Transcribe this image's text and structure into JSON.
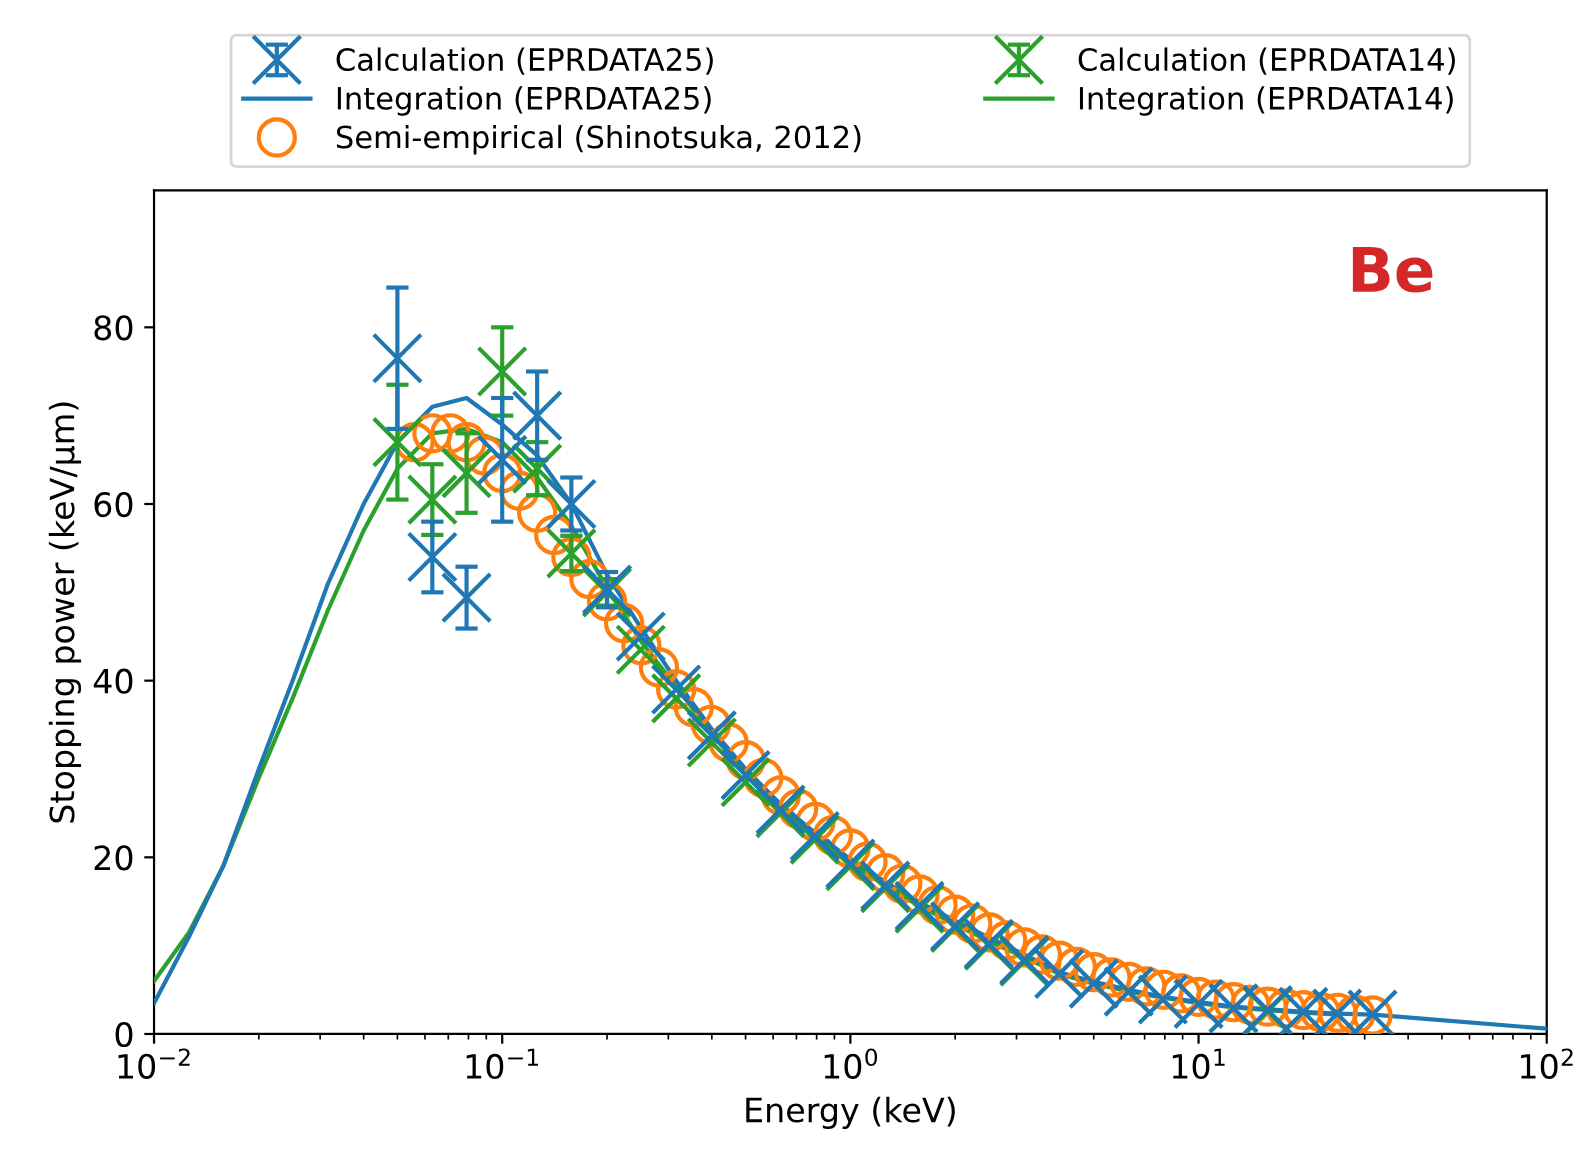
{
  "chart_data": {
    "type": "scatter",
    "xlabel": "Energy (keV)",
    "ylabel": "Stopping power (keV/μm)",
    "annotations": [
      "Be"
    ],
    "log": "x",
    "xlim": [
      0.01,
      100
    ],
    "xticks": [
      {
        "value": 0.01,
        "label": "10$^{−2}$"
      },
      {
        "value": 0.1,
        "label": "10$^{−1}$"
      },
      {
        "value": 1,
        "label": "10$^{0}$"
      },
      {
        "value": 10,
        "label": "10$^{1}$"
      },
      {
        "value": 100,
        "label": "10$^{2}$"
      }
    ],
    "ylim": [
      0,
      95.5
    ],
    "yticks": [
      0,
      20,
      40,
      60,
      80
    ],
    "grid": false,
    "legend": "top",
    "series": [
      {
        "name": "Calculation (EPRDATA25)",
        "marker": "cross",
        "color": "#1f77b4",
        "x": [
          0.05,
          0.063,
          0.079,
          0.1,
          0.126,
          0.158,
          0.2,
          0.25,
          0.316,
          0.4,
          0.5,
          0.63,
          0.79,
          1,
          1.26,
          1.58,
          2,
          2.5,
          3.16,
          3.98,
          5,
          6.3,
          7.9,
          10,
          12.6,
          15.8,
          20,
          25,
          31.6
        ],
        "values": [
          76.5,
          54,
          49.4,
          65,
          70,
          60,
          50.3,
          45,
          39,
          33.8,
          29.3,
          25.4,
          22.4,
          19.3,
          16.8,
          14.5,
          12.2,
          10.2,
          8.4,
          6.8,
          5.7,
          4.8,
          3.9,
          3.4,
          2.9,
          2.7,
          2.5,
          2.3,
          2.2
        ],
        "errors": [
          8,
          4,
          3.5,
          7,
          5,
          3,
          2,
          null,
          null,
          null,
          null,
          null,
          null,
          null,
          null,
          null,
          null,
          null,
          null,
          null,
          null,
          null,
          null,
          null,
          null,
          null,
          null,
          null,
          null
        ]
      },
      {
        "name": "Integration (EPRDATA25)",
        "type": "line",
        "marker": "none",
        "color": "#1f77b4",
        "x": [
          0.01,
          0.0126,
          0.0158,
          0.02,
          0.025,
          0.0316,
          0.04,
          0.05,
          0.063,
          0.079,
          0.1,
          0.126,
          0.158,
          0.2,
          0.25,
          0.316,
          0.4,
          0.5,
          0.63,
          0.79,
          1,
          1.26,
          1.58,
          2,
          2.5,
          3.16,
          3.98,
          5,
          6.3,
          7.9,
          10,
          12.6,
          15.8,
          20,
          25,
          31.6,
          100
        ],
        "values": [
          3.5,
          11,
          19,
          30,
          40,
          51,
          60,
          67,
          71,
          72,
          69,
          65.5,
          60,
          52,
          46,
          40,
          34.5,
          30,
          26,
          22.8,
          19.8,
          17.2,
          14.9,
          12.8,
          10.9,
          9,
          7,
          5.9,
          5,
          4.2,
          3.6,
          3.1,
          2.8,
          2.5,
          2.3,
          2.2,
          0.6
        ]
      },
      {
        "name": "Semi-empirical (Shinotsuka, 2012)",
        "marker": "circle",
        "color": "#ff7f0e",
        "x": [
          0.056,
          0.063,
          0.071,
          0.079,
          0.089,
          0.1,
          0.112,
          0.126,
          0.141,
          0.158,
          0.178,
          0.2,
          0.224,
          0.251,
          0.282,
          0.316,
          0.355,
          0.398,
          0.447,
          0.501,
          0.562,
          0.631,
          0.708,
          0.794,
          0.891,
          1.0,
          1.12,
          1.26,
          1.41,
          1.58,
          1.78,
          2.0,
          2.24,
          2.51,
          2.82,
          3.16,
          3.55,
          3.98,
          4.47,
          5.01,
          5.62,
          6.31,
          7.08,
          7.94,
          8.91,
          10,
          11.2,
          12.6,
          14.1,
          15.8,
          17.8,
          20,
          22.4,
          25.1,
          28.2,
          31.6
        ],
        "values": [
          67,
          68,
          68,
          67,
          65.5,
          63.5,
          61.5,
          59,
          56.5,
          54,
          51.5,
          49,
          46.5,
          44,
          41.5,
          39,
          37,
          35,
          33,
          31,
          29,
          27,
          25.5,
          24,
          22.5,
          21,
          19.5,
          18.2,
          17,
          15.8,
          14.6,
          13.5,
          12.5,
          11.5,
          10.6,
          9.8,
          9,
          8.3,
          7.6,
          7,
          6.4,
          5.9,
          5.4,
          5,
          4.6,
          4.2,
          3.9,
          3.6,
          3.3,
          3.1,
          2.9,
          2.7,
          2.5,
          2.4,
          2.2,
          2.1
        ]
      },
      {
        "name": "Calculation (EPRDATA14)",
        "marker": "cross",
        "color": "#2ca02c",
        "x": [
          0.05,
          0.063,
          0.079,
          0.1,
          0.126,
          0.158,
          0.2,
          0.25,
          0.316,
          0.4,
          0.5,
          0.63,
          0.79,
          1,
          1.26,
          1.58,
          2,
          2.5,
          3.16,
          3.98,
          5,
          6.3,
          7.9,
          10,
          12.6,
          15.8
        ],
        "values": [
          67,
          60.5,
          63.5,
          75,
          64,
          54.4,
          50,
          43.5,
          38,
          33,
          28.5,
          25,
          22,
          19,
          16.5,
          14.2,
          12,
          10,
          8.2,
          null,
          null,
          null,
          null,
          null,
          null,
          2.6
        ],
        "errors": [
          6.5,
          4,
          4.5,
          5,
          3,
          2,
          1.5,
          null,
          null,
          null,
          null,
          null,
          null,
          null,
          null,
          null,
          null,
          null,
          null,
          null,
          null,
          null,
          null,
          null,
          null,
          null
        ]
      },
      {
        "name": "Integration (EPRDATA14)",
        "type": "line",
        "marker": "none",
        "color": "#2ca02c",
        "x": [
          0.01,
          0.0126,
          0.0158,
          0.02,
          0.025,
          0.0316,
          0.04,
          0.05,
          0.063,
          0.079,
          0.1,
          0.126,
          0.158,
          0.2,
          0.25,
          0.316,
          0.4,
          0.5,
          0.63,
          0.79,
          1,
          1.26,
          1.58,
          2,
          2.5,
          3.16,
          3.98,
          5,
          6.3,
          7.9,
          10,
          12.6,
          15.8,
          20,
          25
        ],
        "values": [
          6,
          11.5,
          19,
          29,
          38,
          48,
          57,
          64,
          68,
          68.5,
          67,
          63,
          57.5,
          50.5,
          44.5,
          39.3,
          34,
          29.5,
          25.5,
          22.3,
          19.3,
          16.8,
          14.5,
          12.4,
          10.5,
          8.7,
          6.8,
          5.7,
          4.8,
          4.1,
          3.5,
          3,
          2.7,
          2.4,
          2.2
        ]
      }
    ]
  }
}
